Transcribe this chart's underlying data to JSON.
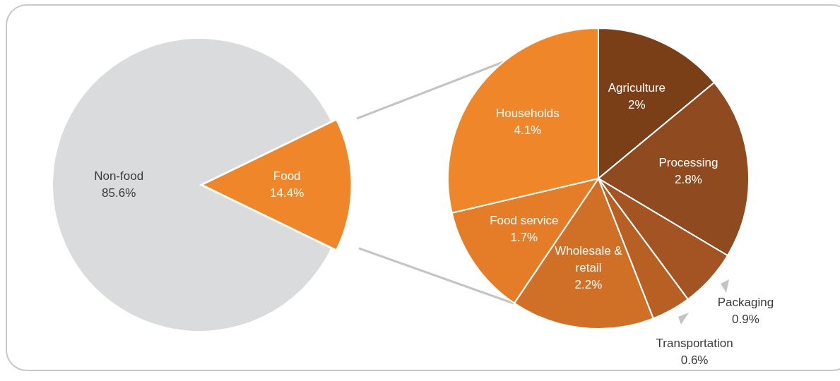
{
  "chart_data": [
    {
      "type": "pie",
      "categories": [
        "Non-food",
        "Food"
      ],
      "values": [
        85.6,
        14.4
      ],
      "colors": [
        "#dadbdc",
        "#f0862a"
      ],
      "value_labels": [
        "85.6%",
        "14.4%"
      ]
    },
    {
      "type": "pie",
      "categories": [
        "Agriculture",
        "Processing",
        "Packaging",
        "Transportation",
        "Wholesale & retail",
        "Food service",
        "Households"
      ],
      "values": [
        2,
        2.8,
        0.9,
        0.6,
        2.2,
        1.7,
        4.1
      ],
      "colors": [
        "#7b3f17",
        "#8f4a1f",
        "#a45422",
        "#b85f24",
        "#d06f26",
        "#e47c28",
        "#f0862a"
      ],
      "value_labels": [
        "2%",
        "2.8%",
        "0.9%",
        "0.6%",
        "2.2%",
        "1.7%",
        "4.1%"
      ]
    }
  ]
}
